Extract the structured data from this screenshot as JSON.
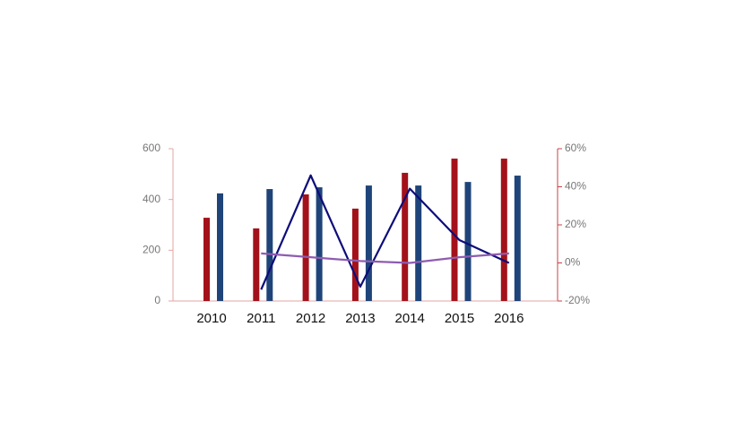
{
  "chart_data": {
    "type": "bar_line",
    "categories": [
      "2010",
      "2011",
      "2012",
      "2013",
      "2014",
      "2015",
      "2016"
    ],
    "series": [
      {
        "type": "bar",
        "color": "#a3121a",
        "values": [
          328,
          286,
          420,
          364,
          505,
          561,
          561
        ]
      },
      {
        "type": "bar",
        "color": "#1f4479",
        "values": [
          424,
          441,
          448,
          455,
          455,
          469,
          494
        ]
      },
      {
        "type": "line",
        "axis": "y2",
        "color": "#0d0d7a",
        "values": [
          null,
          -14,
          46,
          -12.5,
          39,
          12,
          0
        ]
      },
      {
        "type": "line",
        "axis": "y2",
        "color": "#8e5cb0",
        "values": [
          null,
          5,
          3,
          1,
          0,
          3,
          5
        ]
      }
    ],
    "ylim": [
      0,
      600
    ],
    "yticks": [
      0,
      200,
      400,
      600
    ],
    "y2lim": [
      -20,
      60
    ],
    "y2ticks": [
      {
        "value": -20,
        "label": "-20%"
      },
      {
        "value": 0,
        "label": "0%"
      },
      {
        "value": 20,
        "label": "20%"
      },
      {
        "value": 40,
        "label": "40%"
      },
      {
        "value": 60,
        "label": "60%"
      }
    ]
  }
}
